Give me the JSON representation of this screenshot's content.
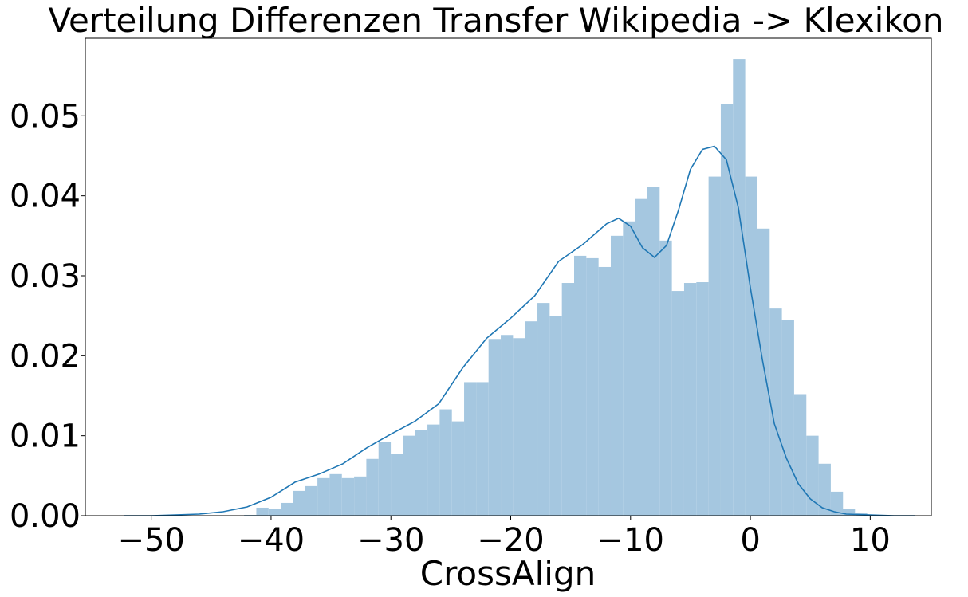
{
  "chart_data": {
    "type": "bar",
    "title": "Verteilung Differenzen Transfer Wikipedia -> Klexikon",
    "xlabel": "CrossAlign",
    "ylabel": "",
    "xlim": [
      -55.5,
      15.1
    ],
    "ylim": [
      0,
      0.0597
    ],
    "xticks": [
      -50,
      -40,
      -30,
      -20,
      -10,
      0,
      10
    ],
    "xtick_labels": [
      "−50",
      "−40",
      "−30",
      "−20",
      "−10",
      "0",
      "10"
    ],
    "yticks": [
      0,
      0.01,
      0.02,
      0.03,
      0.04,
      0.05
    ],
    "ytick_labels": [
      "0.00",
      "0.01",
      "0.02",
      "0.03",
      "0.04",
      "0.05"
    ],
    "grid": false,
    "legend": "none",
    "histogram": {
      "bin_width": 1.02,
      "bin_starts": [
        -52.45,
        -51.43,
        -50.41,
        -49.39,
        -48.37,
        -47.35,
        -46.33,
        -45.31,
        -44.29,
        -43.27,
        -42.25,
        -41.23,
        -40.21,
        -39.19,
        -38.17,
        -37.15,
        -36.13,
        -35.11,
        -34.09,
        -33.07,
        -32.05,
        -31.03,
        -30.01,
        -28.99,
        -27.97,
        -26.95,
        -25.93,
        -24.91,
        -23.89,
        -22.87,
        -21.85,
        -20.83,
        -19.81,
        -18.79,
        -17.77,
        -16.75,
        -15.73,
        -14.71,
        -13.69,
        -12.67,
        -11.65,
        -10.63,
        -9.61,
        -8.59,
        -7.57,
        -6.55,
        -5.53,
        -4.51,
        -3.49,
        -2.47,
        -1.45,
        -0.43,
        0.59,
        1.61,
        2.63,
        3.65,
        4.67,
        5.69,
        6.71,
        7.71,
        8.73,
        9.75,
        10.77,
        11.79
      ],
      "densities": [
        0,
        0,
        0,
        0,
        0,
        0,
        0,
        0,
        0,
        0,
        0.0001,
        0.001,
        0.0008,
        0.0016,
        0.0031,
        0.0037,
        0.0047,
        0.0052,
        0.0047,
        0.0049,
        0.0071,
        0.0092,
        0.0077,
        0.01,
        0.0107,
        0.0114,
        0.0133,
        0.0118,
        0.0167,
        0.0167,
        0.0221,
        0.0226,
        0.0222,
        0.0243,
        0.0266,
        0.025,
        0.0291,
        0.0325,
        0.0322,
        0.0311,
        0.035,
        0.0368,
        0.0396,
        0.0411,
        0.0344,
        0.0281,
        0.0291,
        0.0292,
        0.0424,
        0.0515,
        0.0571,
        0.0424,
        0.0359,
        0.0259,
        0.0245,
        0.0152,
        0.01,
        0.0065,
        0.003,
        0.0008,
        0.0004,
        0,
        0,
        0
      ],
      "color": "#a5c7e0"
    },
    "kde": {
      "x": [
        -52.3,
        -50,
        -48,
        -46,
        -44,
        -42,
        -40,
        -38,
        -36,
        -34,
        -32,
        -30,
        -28,
        -26,
        -24,
        -22,
        -20,
        -18,
        -16,
        -14,
        -12,
        -11,
        -10,
        -9,
        -8,
        -7,
        -6,
        -5,
        -4,
        -3,
        -2,
        -1,
        0,
        1,
        2,
        3,
        4,
        5,
        6,
        7,
        8,
        10,
        12,
        13.7
      ],
      "y": [
        0,
        0,
        0.0001,
        0.0002,
        0.0005,
        0.0011,
        0.0023,
        0.0042,
        0.0052,
        0.0065,
        0.0085,
        0.0102,
        0.0118,
        0.014,
        0.0185,
        0.0222,
        0.0247,
        0.0275,
        0.0318,
        0.0339,
        0.0365,
        0.0372,
        0.0362,
        0.0335,
        0.0323,
        0.0338,
        0.0382,
        0.0433,
        0.0458,
        0.0462,
        0.0445,
        0.0385,
        0.0285,
        0.0195,
        0.0115,
        0.0072,
        0.004,
        0.0021,
        0.001,
        0.0005,
        0.0002,
        0.0001,
        0,
        0
      ],
      "color": "#1f77b4"
    }
  }
}
